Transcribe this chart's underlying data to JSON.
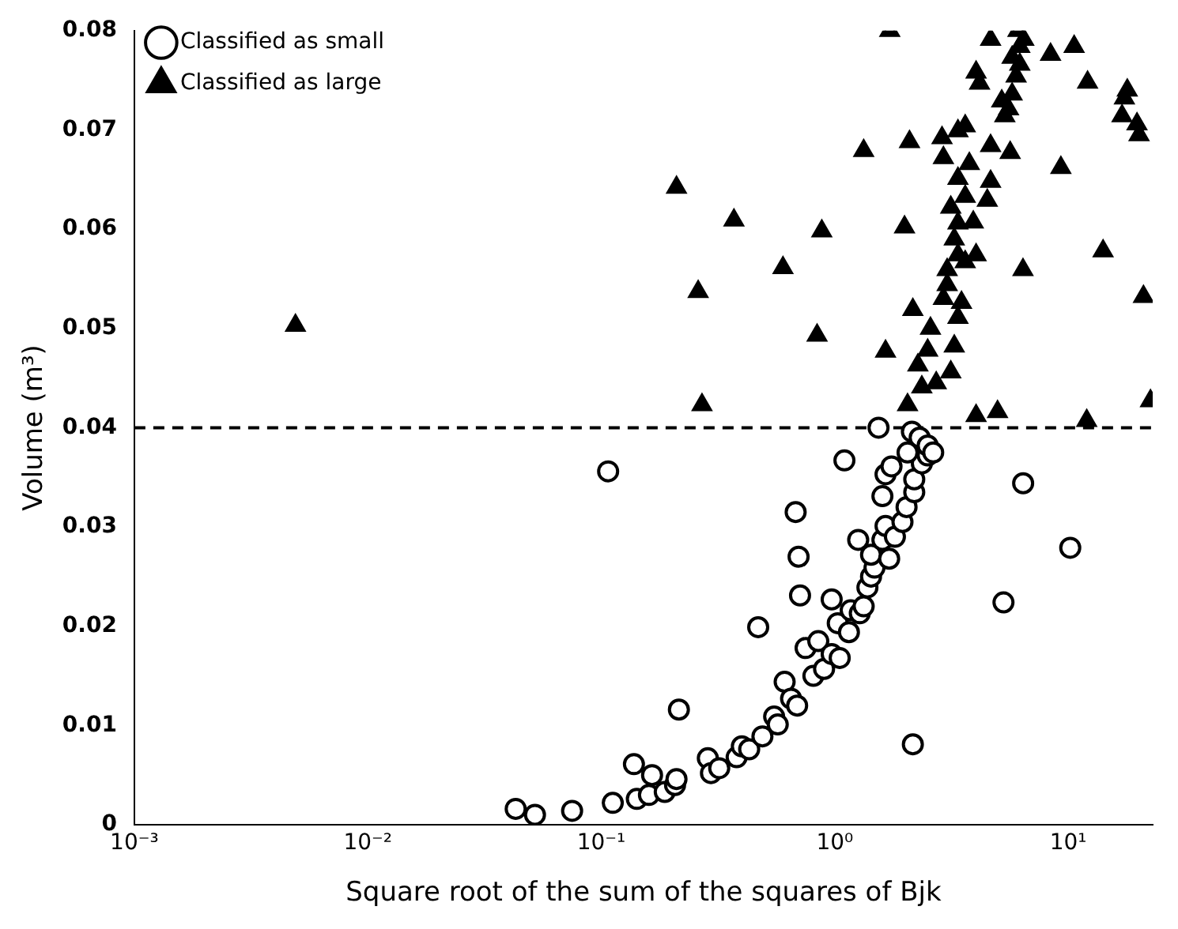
{
  "chart_data": {
    "type": "scatter",
    "xlabel": "Square root of the sum of the squares of Bjk",
    "ylabel": "Volume (m³)",
    "log": "x",
    "xlim": [
      0.001,
      23
    ],
    "xticks": [
      {
        "value": 0.001,
        "label": "10⁻³"
      },
      {
        "value": 0.01,
        "label": "10⁻²"
      },
      {
        "value": 0.1,
        "label": "10⁻¹"
      },
      {
        "value": 1,
        "label": "10⁰"
      },
      {
        "value": 10,
        "label": "10¹"
      }
    ],
    "ylim": [
      0,
      0.08
    ],
    "yticks": [
      0,
      0.01,
      0.02,
      0.03,
      0.04,
      0.05,
      0.06,
      0.07,
      0.08
    ],
    "grid": false,
    "legend": "top left",
    "ref_lines": [
      {
        "axis": "y",
        "value": 0.04,
        "color": "#000000",
        "line_style": "dashed"
      }
    ],
    "series": [
      {
        "name": "Classified as small",
        "color": "#000000",
        "marker": "circle",
        "x": [
          0.107,
          1.1,
          0.68,
          0.7,
          0.71,
          0.47,
          0.215,
          2.16,
          5.28,
          6.41,
          10.2,
          1.54,
          0.043,
          0.052,
          0.075,
          0.112,
          0.138,
          0.142,
          0.165,
          0.16,
          0.187,
          0.207,
          0.21,
          0.286,
          0.295,
          0.32,
          0.38,
          0.4,
          0.43,
          0.49,
          0.55,
          0.57,
          0.61,
          0.65,
          0.69,
          0.75,
          0.81,
          0.85,
          0.9,
          0.97,
          0.97,
          1.03,
          1.05,
          1.15,
          1.17,
          1.28,
          1.26,
          1.33,
          1.38,
          1.43,
          1.48,
          1.43,
          1.71,
          1.6,
          1.65,
          1.81,
          1.95,
          1.6,
          2.03,
          2.19,
          2.19,
          1.65,
          1.75,
          2.36,
          2.5,
          2.14,
          2.31,
          2.5,
          2.64,
          2.05
        ],
        "values": [
          0.0356,
          0.0367,
          0.0315,
          0.027,
          0.0231,
          0.0199,
          0.0116,
          0.0081,
          0.0224,
          0.0344,
          0.0279,
          0.04,
          0.0016,
          0.001,
          0.0014,
          0.0022,
          0.0061,
          0.0026,
          0.005,
          0.003,
          0.0033,
          0.004,
          0.0046,
          0.0067,
          0.0052,
          0.0057,
          0.0068,
          0.0079,
          0.0076,
          0.0089,
          0.0109,
          0.0101,
          0.0144,
          0.0127,
          0.012,
          0.0178,
          0.015,
          0.0185,
          0.0157,
          0.0227,
          0.0172,
          0.0203,
          0.0168,
          0.0194,
          0.0216,
          0.0213,
          0.0287,
          0.022,
          0.0239,
          0.025,
          0.0259,
          0.0272,
          0.0268,
          0.0287,
          0.0301,
          0.029,
          0.0305,
          0.0331,
          0.032,
          0.0335,
          0.0348,
          0.0353,
          0.0361,
          0.0364,
          0.0372,
          0.0396,
          0.039,
          0.0382,
          0.0375,
          0.0375
        ]
      },
      {
        "name": "Classified as large",
        "color": "#000000",
        "marker": "triangle",
        "x": [
          0.0049,
          0.21,
          0.26,
          0.27,
          0.37,
          0.6,
          0.84,
          0.88,
          1.33,
          1.65,
          1.72,
          1.99,
          2.09,
          2.05,
          2.16,
          2.27,
          2.36,
          2.57,
          2.72,
          2.5,
          2.92,
          3.03,
          3.25,
          3.14,
          3.37,
          3.49,
          3.03,
          3.37,
          3.62,
          4.03,
          3.25,
          3.37,
          3.14,
          3.62,
          3.92,
          3.37,
          3.77,
          4.65,
          4.5,
          2.92,
          2.88,
          3.37,
          3.62,
          4.65,
          5.64,
          4.03,
          4.17,
          4.65,
          5.19,
          5.35,
          5.55,
          5.75,
          5.98,
          6.09,
          6.2,
          5.75,
          6.2,
          6.45,
          6.4,
          4.98,
          4.03,
          8.4,
          9.3,
          10.6,
          12.1,
          12.0,
          14.1,
          17.4,
          17.9,
          17.0,
          19.7,
          20.1,
          21.0,
          22.5
        ],
        "values": [
          0.0503,
          0.0642,
          0.0537,
          0.0423,
          0.0609,
          0.0561,
          0.0493,
          0.0598,
          0.0679,
          0.0477,
          0.08,
          0.0602,
          0.0688,
          0.0423,
          0.0519,
          0.0463,
          0.0441,
          0.05,
          0.0445,
          0.0478,
          0.053,
          0.0544,
          0.0482,
          0.0456,
          0.0511,
          0.0526,
          0.0559,
          0.0574,
          0.0567,
          0.0574,
          0.059,
          0.0606,
          0.0622,
          0.0633,
          0.0607,
          0.0651,
          0.0666,
          0.0648,
          0.0629,
          0.0672,
          0.0692,
          0.0699,
          0.0704,
          0.0684,
          0.0677,
          0.0758,
          0.0747,
          0.0791,
          0.0729,
          0.0714,
          0.0721,
          0.0736,
          0.0754,
          0.08,
          0.0784,
          0.0773,
          0.0766,
          0.0791,
          0.0559,
          0.0416,
          0.0412,
          0.0776,
          0.0662,
          0.0784,
          0.0748,
          0.0407,
          0.0578,
          0.0732,
          0.074,
          0.0714,
          0.0706,
          0.0695,
          0.0532,
          0.0427
        ]
      }
    ]
  }
}
